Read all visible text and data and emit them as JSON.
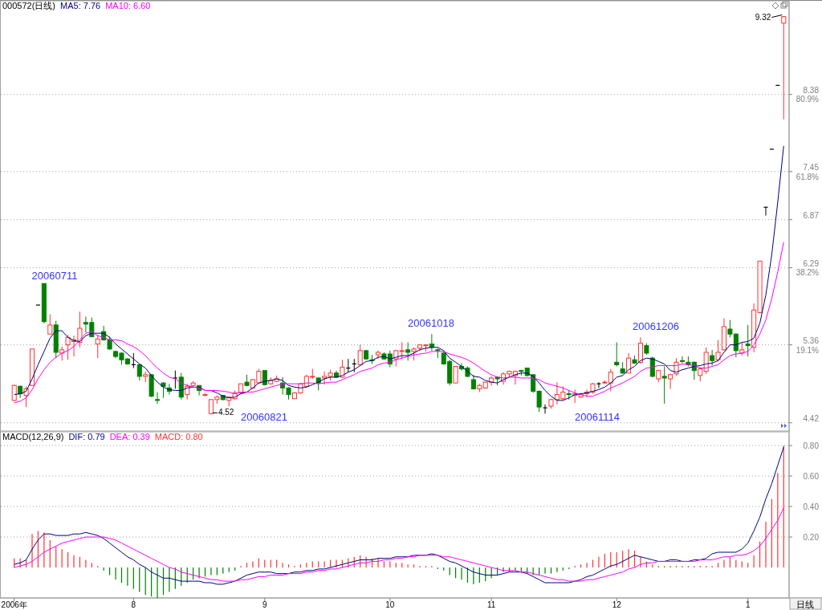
{
  "chart_data": [
    {
      "type": "candlestick",
      "title": "000572(日线)",
      "legend": "top left",
      "grid": "y",
      "tick_labels": "y",
      "categories": [
        null,
        null,
        null,
        null,
        null,
        null,
        null,
        null,
        null,
        null,
        null,
        null,
        null,
        null,
        null,
        null,
        null,
        null,
        null,
        null,
        null,
        null,
        null,
        null,
        null,
        null,
        null,
        null,
        null,
        null,
        null,
        null,
        null,
        null,
        null,
        null,
        null,
        null,
        null,
        null,
        null,
        null,
        null,
        null,
        null,
        null,
        null,
        null,
        null,
        null,
        null,
        null,
        null,
        null,
        null,
        null,
        null,
        null,
        null,
        null,
        null,
        null,
        null,
        null,
        null,
        null,
        null,
        null,
        null,
        null,
        null,
        null,
        null,
        null,
        null,
        null,
        null,
        null,
        null,
        null,
        null,
        null,
        null,
        null,
        null,
        null,
        null,
        null,
        null,
        null,
        null,
        null,
        null,
        null,
        null,
        null,
        null,
        null,
        null,
        null,
        null,
        null,
        null,
        null,
        null,
        null,
        null,
        null,
        null,
        null,
        null,
        null,
        null,
        null,
        null,
        null,
        null,
        null,
        null,
        null,
        null,
        null,
        null,
        null,
        null,
        null,
        null,
        null,
        null,
        null
      ],
      "ohlc": [
        [
          4.69,
          4.88,
          4.68,
          4.87
        ],
        [
          4.86,
          4.87,
          4.72,
          4.77
        ],
        [
          4.75,
          4.86,
          4.61,
          4.83
        ],
        [
          4.87,
          5.31,
          4.87,
          5.31
        ],
        [
          5.84,
          5.84,
          5.84,
          5.84
        ],
        [
          6.1,
          6.1,
          5.62,
          5.64
        ],
        [
          5.49,
          5.73,
          5.49,
          5.6
        ],
        [
          5.6,
          5.65,
          5.2,
          5.27
        ],
        [
          5.26,
          5.34,
          5.17,
          5.3
        ],
        [
          5.36,
          5.48,
          5.18,
          5.45
        ],
        [
          5.4,
          5.47,
          5.22,
          5.42
        ],
        [
          5.39,
          5.76,
          5.33,
          5.56
        ],
        [
          5.63,
          5.7,
          5.51,
          5.61
        ],
        [
          5.63,
          5.69,
          5.45,
          5.46
        ],
        [
          5.37,
          5.48,
          5.2,
          5.43
        ],
        [
          5.52,
          5.59,
          5.41,
          5.42
        ],
        [
          5.42,
          5.46,
          5.3,
          5.31
        ],
        [
          5.28,
          5.29,
          5.2,
          5.22
        ],
        [
          5.26,
          5.27,
          5.12,
          5.18
        ],
        [
          5.19,
          5.2,
          5.12,
          5.13
        ],
        [
          5.12,
          5.26,
          5.08,
          5.12
        ],
        [
          5.12,
          5.13,
          4.93,
          4.98
        ],
        [
          4.98,
          5.04,
          4.91,
          5.0
        ],
        [
          5.0,
          5.0,
          4.73,
          4.74
        ],
        [
          4.7,
          4.79,
          4.65,
          4.69
        ],
        [
          4.9,
          4.91,
          4.72,
          4.86
        ],
        [
          4.84,
          4.89,
          4.76,
          4.8
        ],
        [
          4.96,
          5.05,
          4.83,
          4.96
        ],
        [
          4.97,
          5.02,
          4.7,
          4.73
        ],
        [
          4.76,
          4.89,
          4.7,
          4.86
        ],
        [
          4.87,
          4.92,
          4.84,
          4.9
        ],
        [
          4.87,
          4.87,
          4.75,
          4.81
        ],
        [
          4.75,
          4.78,
          4.74,
          4.76
        ],
        [
          4.53,
          4.7,
          4.52,
          4.7
        ],
        [
          4.7,
          4.75,
          4.65,
          4.73
        ],
        [
          4.75,
          4.75,
          4.69,
          4.7
        ],
        [
          4.69,
          4.74,
          4.62,
          4.73
        ],
        [
          4.71,
          4.81,
          4.7,
          4.78
        ],
        [
          4.78,
          4.89,
          4.77,
          4.89
        ],
        [
          4.91,
          5.0,
          4.86,
          4.87
        ],
        [
          4.84,
          4.95,
          4.83,
          4.94
        ],
        [
          4.9,
          5.07,
          4.89,
          5.04
        ],
        [
          5.05,
          5.05,
          4.87,
          4.88
        ],
        [
          4.89,
          4.97,
          4.88,
          4.93
        ],
        [
          4.92,
          4.99,
          4.91,
          4.95
        ],
        [
          4.9,
          4.97,
          4.76,
          4.84
        ],
        [
          4.84,
          4.85,
          4.7,
          4.76
        ],
        [
          4.71,
          4.79,
          4.71,
          4.78
        ],
        [
          4.78,
          4.9,
          4.77,
          4.89
        ],
        [
          4.86,
          5.0,
          4.85,
          4.98
        ],
        [
          4.97,
          5.07,
          4.95,
          4.98
        ],
        [
          4.96,
          4.97,
          4.81,
          4.9
        ],
        [
          4.96,
          5.04,
          4.88,
          4.98
        ],
        [
          4.98,
          5.06,
          4.93,
          5.02
        ],
        [
          5.02,
          5.05,
          4.96,
          4.97
        ],
        [
          4.97,
          5.18,
          4.96,
          5.09
        ],
        [
          5.08,
          5.19,
          5.03,
          5.08
        ],
        [
          5.13,
          5.19,
          5.03,
          5.13
        ],
        [
          5.12,
          5.36,
          5.11,
          5.29
        ],
        [
          5.29,
          5.3,
          5.18,
          5.19
        ],
        [
          5.18,
          5.24,
          5.13,
          5.17
        ],
        [
          5.24,
          5.29,
          5.19,
          5.27
        ],
        [
          5.25,
          5.27,
          5.18,
          5.19
        ],
        [
          5.25,
          5.29,
          5.09,
          5.13
        ],
        [
          5.19,
          5.3,
          5.1,
          5.29
        ],
        [
          5.28,
          5.39,
          5.19,
          5.29
        ],
        [
          5.3,
          5.39,
          5.17,
          5.27
        ],
        [
          5.28,
          5.33,
          5.17,
          5.31
        ],
        [
          5.32,
          5.36,
          5.29,
          5.36
        ],
        [
          5.35,
          5.36,
          5.28,
          5.36
        ],
        [
          5.37,
          5.49,
          5.29,
          5.33
        ],
        [
          5.3,
          5.32,
          5.2,
          5.29
        ],
        [
          5.26,
          5.28,
          5.12,
          5.13
        ],
        [
          5.16,
          5.18,
          4.87,
          4.9
        ],
        [
          4.9,
          5.1,
          4.9,
          5.1
        ],
        [
          5.1,
          5.14,
          5.05,
          5.07
        ],
        [
          5.08,
          5.1,
          4.97,
          4.98
        ],
        [
          4.94,
          5.0,
          4.82,
          4.83
        ],
        [
          4.83,
          4.89,
          4.79,
          4.87
        ],
        [
          4.84,
          4.91,
          4.83,
          4.91
        ],
        [
          4.91,
          4.98,
          4.87,
          4.96
        ],
        [
          4.97,
          4.98,
          4.87,
          4.95
        ],
        [
          4.92,
          5.03,
          4.88,
          5.01
        ],
        [
          5.01,
          5.05,
          4.97,
          5.04
        ],
        [
          4.99,
          5.05,
          4.88,
          5.04
        ],
        [
          5.05,
          5.06,
          4.99,
          5.04
        ],
        [
          5.08,
          5.08,
          4.98,
          4.99
        ],
        [
          5.0,
          5.0,
          4.78,
          4.8
        ],
        [
          4.8,
          4.81,
          4.55,
          4.61
        ],
        [
          4.6,
          4.64,
          4.53,
          4.6
        ],
        [
          4.62,
          4.71,
          4.59,
          4.7
        ],
        [
          4.7,
          4.91,
          4.64,
          4.76
        ],
        [
          4.71,
          4.86,
          4.69,
          4.79
        ],
        [
          4.77,
          4.81,
          4.7,
          4.76
        ],
        [
          4.75,
          4.82,
          4.66,
          4.77
        ],
        [
          4.73,
          4.78,
          4.72,
          4.77
        ],
        [
          4.77,
          4.82,
          4.73,
          4.79
        ],
        [
          4.79,
          4.9,
          4.77,
          4.89
        ],
        [
          4.89,
          4.91,
          4.84,
          4.89
        ],
        [
          4.9,
          4.93,
          4.89,
          4.91
        ],
        [
          4.9,
          5.07,
          4.8,
          5.03
        ],
        [
          5.15,
          5.39,
          5.1,
          5.12
        ],
        [
          5.07,
          5.15,
          5.01,
          5.02
        ],
        [
          5.02,
          5.26,
          5.02,
          5.2
        ],
        [
          5.18,
          5.23,
          5.13,
          5.14
        ],
        [
          5.15,
          5.45,
          5.13,
          5.38
        ],
        [
          5.35,
          5.38,
          5.24,
          5.26
        ],
        [
          5.2,
          5.22,
          4.97,
          4.98
        ],
        [
          4.95,
          5.06,
          4.91,
          5.05
        ],
        [
          4.98,
          5.1,
          4.65,
          4.96
        ],
        [
          4.95,
          5.01,
          4.83,
          5.0
        ],
        [
          5.01,
          5.2,
          4.99,
          5.15
        ],
        [
          5.17,
          5.22,
          5.14,
          5.16
        ],
        [
          5.15,
          5.22,
          5.1,
          5.12
        ],
        [
          5.15,
          5.16,
          4.94,
          5.05
        ],
        [
          4.99,
          5.09,
          4.92,
          5.07
        ],
        [
          5.04,
          5.33,
          5.01,
          5.27
        ],
        [
          5.23,
          5.3,
          5.11,
          5.17
        ],
        [
          5.18,
          5.42,
          5.16,
          5.27
        ],
        [
          5.3,
          5.68,
          5.29,
          5.58
        ],
        [
          5.55,
          5.66,
          5.45,
          5.49
        ],
        [
          5.49,
          5.5,
          5.21,
          5.29
        ],
        [
          5.26,
          5.39,
          5.23,
          5.3
        ],
        [
          5.37,
          5.6,
          5.22,
          5.35
        ],
        [
          5.33,
          5.86,
          5.27,
          5.78
        ],
        [
          5.75,
          6.37,
          5.74,
          6.37
        ],
        [
          7.02,
          7.02,
          6.92,
          7.02
        ],
        [
          7.72,
          7.72,
          7.72,
          7.72
        ],
        [
          8.49,
          8.49,
          8.49,
          8.49
        ],
        [
          9.24,
          9.32,
          8.08,
          9.32
        ]
      ],
      "colors": [
        "#ff3333",
        "#008000",
        "#ff3333",
        "#ff3333",
        "#000000",
        "#008000",
        "#ff3333",
        "#008000",
        "#ff3333",
        "#ff3333",
        "#ff3333",
        "#ff3333",
        "#008000",
        "#008000",
        "#ff3333",
        "#008000",
        "#008000",
        "#008000",
        "#008000",
        "#008000",
        "#000000",
        "#008000",
        "#ff3333",
        "#008000",
        "#008000",
        "#008000",
        "#008000",
        "#000000",
        "#008000",
        "#ff3333",
        "#ff3333",
        "#008000",
        "#ff3333",
        "#ff3333",
        "#ff3333",
        "#008000",
        "#ff3333",
        "#ff3333",
        "#ff3333",
        "#008000",
        "#ff3333",
        "#ff3333",
        "#008000",
        "#ff3333",
        "#ff3333",
        "#008000",
        "#008000",
        "#ff3333",
        "#ff3333",
        "#ff3333",
        "#ff3333",
        "#008000",
        "#ff3333",
        "#ff3333",
        "#008000",
        "#ff3333",
        "#000000",
        "#000000",
        "#ff3333",
        "#008000",
        "#008000",
        "#ff3333",
        "#008000",
        "#008000",
        "#ff3333",
        "#ff3333",
        "#008000",
        "#ff3333",
        "#ff3333",
        "#ff3333",
        "#008000",
        "#008000",
        "#008000",
        "#008000",
        "#ff3333",
        "#008000",
        "#008000",
        "#008000",
        "#ff3333",
        "#ff3333",
        "#ff3333",
        "#008000",
        "#ff3333",
        "#ff3333",
        "#ff3333",
        "#008000",
        "#008000",
        "#008000",
        "#008000",
        "#000000",
        "#ff3333",
        "#ff3333",
        "#ff3333",
        "#008000",
        "#ff3333",
        "#ff3333",
        "#ff3333",
        "#ff3333",
        "#000000",
        "#ff3333",
        "#ff3333",
        "#008000",
        "#008000",
        "#ff3333",
        "#008000",
        "#ff3333",
        "#008000",
        "#008000",
        "#ff3333",
        "#008000",
        "#ff3333",
        "#ff3333",
        "#008000",
        "#008000",
        "#008000",
        "#ff3333",
        "#ff3333",
        "#008000",
        "#ff3333",
        "#ff3333",
        "#008000",
        "#008000",
        "#ff3333",
        "#008000",
        "#ff3333",
        "#ff3333",
        "#000000",
        "#000000",
        "#000000",
        "#ff3333"
      ],
      "value_labels": [
        null,
        null,
        null,
        null,
        null,
        null,
        null,
        null,
        null,
        null,
        null,
        null,
        null,
        null,
        null,
        null,
        null,
        null,
        null,
        null,
        null,
        null,
        null,
        null,
        null,
        null,
        null,
        null,
        null,
        null,
        null,
        null,
        null,
        "4.52",
        null,
        null,
        null,
        null,
        null,
        null,
        null,
        null,
        null,
        null,
        null,
        null,
        null,
        null,
        null,
        null,
        null,
        null,
        null,
        null,
        null,
        null,
        null,
        null,
        null,
        null,
        null,
        null,
        null,
        null,
        null,
        null,
        null,
        null,
        null,
        null,
        null,
        null,
        null,
        null,
        null,
        null,
        null,
        null,
        null,
        null,
        null,
        null,
        null,
        null,
        null,
        null,
        null,
        null,
        null,
        null,
        null,
        null,
        null,
        null,
        null,
        null,
        null,
        null,
        null,
        null,
        null,
        null,
        null,
        null,
        null,
        null,
        null,
        null,
        null,
        null,
        null,
        null,
        null,
        null,
        null,
        null,
        null,
        null,
        null,
        null,
        null,
        null,
        null,
        null,
        null,
        null,
        null,
        null,
        null,
        "9.32"
      ],
      "series": [
        {
          "type": "line",
          "name": "MA5: 7.76",
          "color": "#000080",
          "values": [
            4.76,
            4.77,
            4.8,
            4.95,
            5.12,
            5.28,
            5.44,
            5.53,
            5.53,
            5.45,
            5.41,
            5.4,
            5.47,
            5.5,
            5.5,
            5.5,
            5.45,
            5.37,
            5.31,
            5.25,
            5.19,
            5.13,
            5.08,
            4.99,
            4.91,
            4.85,
            4.82,
            4.81,
            4.81,
            4.84,
            4.85,
            4.85,
            4.81,
            4.81,
            4.78,
            4.74,
            4.72,
            4.73,
            4.77,
            4.79,
            4.84,
            4.9,
            4.92,
            4.93,
            4.95,
            4.93,
            4.87,
            4.85,
            4.84,
            4.85,
            4.88,
            4.91,
            4.95,
            4.97,
            4.97,
            4.99,
            5.03,
            5.06,
            5.11,
            5.16,
            5.17,
            5.21,
            5.22,
            5.19,
            5.21,
            5.23,
            5.23,
            5.26,
            5.3,
            5.32,
            5.33,
            5.33,
            5.29,
            5.2,
            5.15,
            5.1,
            5.04,
            4.98,
            4.97,
            4.93,
            4.91,
            4.9,
            4.94,
            4.97,
            5.0,
            5.02,
            5.02,
            4.98,
            4.9,
            4.81,
            4.74,
            4.69,
            4.69,
            4.72,
            4.76,
            4.77,
            4.78,
            4.8,
            4.82,
            4.85,
            4.9,
            4.97,
            4.99,
            5.06,
            5.1,
            5.17,
            5.2,
            5.19,
            5.16,
            5.13,
            5.05,
            5.03,
            5.06,
            5.08,
            5.1,
            5.11,
            5.13,
            5.14,
            5.17,
            5.27,
            5.36,
            5.36,
            5.39,
            5.4,
            5.44,
            5.62,
            5.96,
            6.45,
            7.08,
            7.76
          ]
        },
        {
          "type": "line",
          "name": "MA10: 6.60",
          "color": "#ff00ff",
          "values": [
            4.66,
            4.68,
            4.72,
            4.82,
            4.95,
            5.06,
            5.15,
            5.21,
            5.26,
            5.29,
            5.34,
            5.42,
            5.5,
            5.52,
            5.47,
            5.45,
            5.42,
            5.42,
            5.41,
            5.37,
            5.34,
            5.29,
            5.23,
            5.15,
            5.08,
            5.02,
            4.97,
            4.95,
            4.9,
            4.87,
            4.85,
            4.84,
            4.81,
            4.81,
            4.81,
            4.8,
            4.79,
            4.77,
            4.79,
            4.79,
            4.79,
            4.81,
            4.83,
            4.85,
            4.87,
            4.89,
            4.89,
            4.89,
            4.89,
            4.9,
            4.9,
            4.89,
            4.9,
            4.91,
            4.91,
            4.94,
            4.97,
            5.0,
            5.04,
            5.06,
            5.08,
            5.12,
            5.14,
            5.15,
            5.18,
            5.2,
            5.22,
            5.24,
            5.25,
            5.26,
            5.28,
            5.28,
            5.28,
            5.25,
            5.23,
            5.21,
            5.18,
            5.14,
            5.09,
            5.04,
            5.0,
            4.97,
            4.96,
            4.97,
            4.97,
            4.96,
            4.96,
            4.96,
            4.94,
            4.9,
            4.88,
            4.86,
            4.84,
            4.81,
            4.78,
            4.76,
            4.74,
            4.74,
            4.77,
            4.8,
            4.84,
            4.87,
            4.9,
            4.94,
            4.98,
            5.04,
            5.08,
            5.09,
            5.11,
            5.11,
            5.11,
            5.11,
            5.13,
            5.12,
            5.11,
            5.08,
            5.08,
            5.1,
            5.12,
            5.18,
            5.23,
            5.25,
            5.26,
            5.28,
            5.36,
            5.49,
            5.66,
            5.92,
            6.24,
            6.6
          ]
        }
      ],
      "ylim": [
        4.34,
        9.51
      ],
      "yticks": [
        {
          "value": 4.42,
          "label": "4.42"
        },
        {
          "value": 5.36,
          "label": "5.36"
        },
        {
          "value": 6.29,
          "label": "6.29"
        },
        {
          "value": 6.87,
          "label": "6.87"
        },
        {
          "value": 7.45,
          "label": "7.45"
        },
        {
          "value": 8.38,
          "label": "8.38"
        }
      ],
      "y2lim": [
        -1.6,
        103.9
      ],
      "y2ticks": [
        {
          "value": 19.1,
          "label": "19.1%"
        },
        {
          "value": 38.2,
          "label": "38.2%"
        },
        {
          "value": 61.8,
          "label": "61.8%"
        },
        {
          "value": 80.9,
          "label": "80.9%"
        }
      ],
      "annotations": [
        "20060711",
        "20060821",
        "20061018",
        "20061114",
        "20061206"
      ]
    },
    {
      "type": "bar",
      "title": "MACD(12,26,9)",
      "legend": "top left",
      "grid": "y",
      "categories": [
        "2006年",
        null,
        null,
        null,
        null,
        null,
        null,
        null,
        null,
        null,
        null,
        null,
        null,
        null,
        null,
        null,
        null,
        null,
        null,
        null,
        "8",
        null,
        null,
        null,
        null,
        null,
        null,
        null,
        null,
        null,
        null,
        null,
        null,
        null,
        null,
        null,
        null,
        null,
        null,
        null,
        null,
        null,
        "9",
        null,
        null,
        null,
        null,
        null,
        null,
        null,
        null,
        null,
        null,
        null,
        null,
        null,
        null,
        null,
        null,
        null,
        null,
        null,
        null,
        "10",
        null,
        null,
        null,
        null,
        null,
        null,
        null,
        null,
        null,
        null,
        null,
        null,
        null,
        null,
        null,
        null,
        "11",
        null,
        null,
        null,
        null,
        null,
        null,
        null,
        null,
        null,
        null,
        null,
        null,
        null,
        null,
        null,
        null,
        null,
        null,
        null,
        null,
        "12",
        null,
        null,
        null,
        null,
        null,
        null,
        null,
        null,
        null,
        null,
        null,
        null,
        null,
        null,
        null,
        null,
        null,
        null,
        null,
        null,
        null,
        "1",
        null,
        null,
        null,
        null,
        null,
        null
      ],
      "series": [
        {
          "type": "line",
          "name": "DIF: 0.79",
          "color": "#000080",
          "values": [
            0.02,
            0.03,
            0.05,
            0.12,
            0.18,
            0.22,
            0.22,
            0.21,
            0.21,
            0.21,
            0.22,
            0.22,
            0.23,
            0.22,
            0.21,
            0.19,
            0.16,
            0.13,
            0.1,
            0.07,
            0.05,
            0.02,
            0.0,
            -0.03,
            -0.05,
            -0.07,
            -0.07,
            -0.08,
            -0.09,
            -0.09,
            -0.09,
            -0.09,
            -0.1,
            -0.1,
            -0.11,
            -0.11,
            -0.1,
            -0.09,
            -0.07,
            -0.05,
            -0.04,
            -0.03,
            -0.03,
            -0.03,
            -0.04,
            -0.04,
            -0.04,
            -0.03,
            -0.03,
            -0.02,
            -0.02,
            -0.01,
            -0.01,
            0.0,
            0.01,
            0.02,
            0.03,
            0.04,
            0.05,
            0.05,
            0.05,
            0.06,
            0.06,
            0.06,
            0.07,
            0.07,
            0.07,
            0.08,
            0.08,
            0.08,
            0.09,
            0.08,
            0.06,
            0.04,
            0.03,
            0.01,
            -0.01,
            -0.03,
            -0.04,
            -0.05,
            -0.05,
            -0.05,
            -0.04,
            -0.03,
            -0.03,
            -0.03,
            -0.04,
            -0.06,
            -0.08,
            -0.1,
            -0.1,
            -0.1,
            -0.1,
            -0.1,
            -0.09,
            -0.08,
            -0.06,
            -0.05,
            -0.03,
            -0.01,
            0.01,
            0.02,
            0.04,
            0.06,
            0.08,
            0.07,
            0.06,
            0.05,
            0.04,
            0.04,
            0.05,
            0.05,
            0.04,
            0.04,
            0.05,
            0.05,
            0.06,
            0.09,
            0.1,
            0.1,
            0.1,
            0.1,
            0.12,
            0.16,
            0.24,
            0.33,
            0.45,
            0.55,
            0.67,
            0.79
          ]
        },
        {
          "type": "line",
          "name": "DEA: 0.39",
          "color": "#ff00ff",
          "values": [
            0.0,
            0.01,
            0.02,
            0.04,
            0.07,
            0.1,
            0.12,
            0.14,
            0.16,
            0.17,
            0.18,
            0.19,
            0.2,
            0.2,
            0.2,
            0.2,
            0.19,
            0.18,
            0.16,
            0.14,
            0.12,
            0.1,
            0.08,
            0.06,
            0.04,
            0.02,
            0.0,
            -0.01,
            -0.03,
            -0.04,
            -0.05,
            -0.06,
            -0.07,
            -0.08,
            -0.08,
            -0.09,
            -0.09,
            -0.09,
            -0.08,
            -0.08,
            -0.07,
            -0.06,
            -0.06,
            -0.05,
            -0.05,
            -0.05,
            -0.04,
            -0.04,
            -0.04,
            -0.03,
            -0.03,
            -0.02,
            -0.02,
            -0.01,
            -0.01,
            0.0,
            0.01,
            0.02,
            0.03,
            0.03,
            0.04,
            0.04,
            0.05,
            0.05,
            0.06,
            0.06,
            0.07,
            0.07,
            0.08,
            0.08,
            0.08,
            0.08,
            0.07,
            0.07,
            0.06,
            0.05,
            0.04,
            0.03,
            0.02,
            0.01,
            0.0,
            -0.01,
            -0.02,
            -0.02,
            -0.02,
            -0.03,
            -0.03,
            -0.04,
            -0.05,
            -0.06,
            -0.07,
            -0.08,
            -0.08,
            -0.09,
            -0.09,
            -0.09,
            -0.08,
            -0.08,
            -0.07,
            -0.06,
            -0.05,
            -0.04,
            -0.03,
            -0.01,
            0.0,
            0.02,
            0.03,
            0.03,
            0.04,
            0.04,
            0.04,
            0.04,
            0.04,
            0.04,
            0.04,
            0.05,
            0.05,
            0.05,
            0.06,
            0.07,
            0.07,
            0.08,
            0.08,
            0.09,
            0.11,
            0.14,
            0.19,
            0.25,
            0.31,
            0.39
          ]
        },
        {
          "type": "bar",
          "name": "MACD: 0.80",
          "color": "#ff3333",
          "values": [
            0.06,
            0.06,
            0.05,
            0.22,
            0.24,
            0.23,
            0.18,
            0.14,
            0.12,
            0.1,
            0.08,
            0.07,
            0.05,
            0.03,
            0.01,
            -0.02,
            -0.05,
            -0.08,
            -0.1,
            -0.12,
            -0.14,
            -0.16,
            -0.18,
            -0.19,
            -0.2,
            -0.18,
            -0.16,
            -0.14,
            -0.12,
            -0.1,
            -0.08,
            -0.07,
            -0.06,
            -0.05,
            -0.05,
            -0.04,
            -0.03,
            -0.02,
            0.01,
            0.03,
            0.04,
            0.06,
            0.05,
            0.05,
            0.05,
            0.03,
            0.02,
            0.01,
            0.02,
            0.03,
            0.04,
            0.04,
            0.04,
            0.05,
            0.05,
            0.05,
            0.06,
            0.07,
            0.08,
            0.07,
            0.06,
            0.06,
            0.04,
            0.04,
            0.03,
            0.03,
            0.02,
            0.02,
            0.01,
            0.01,
            0.01,
            -0.01,
            -0.02,
            -0.05,
            -0.07,
            -0.08,
            -0.1,
            -0.11,
            -0.1,
            -0.09,
            -0.07,
            -0.05,
            -0.03,
            -0.03,
            -0.02,
            -0.03,
            -0.04,
            -0.05,
            -0.05,
            -0.04,
            -0.04,
            -0.03,
            -0.02,
            -0.01,
            0.01,
            0.02,
            0.03,
            0.05,
            0.07,
            0.09,
            0.1,
            0.1,
            0.11,
            0.12,
            0.11,
            0.07,
            0.04,
            0.02,
            0.01,
            0.01,
            0.01,
            0.01,
            0.01,
            0.01,
            0.01,
            0.01,
            0.01,
            0.01,
            0.03,
            0.05,
            0.07,
            0.05,
            0.04,
            0.03,
            0.08,
            0.17,
            0.3,
            0.45,
            0.62,
            0.8
          ],
          "colors": [
            "#ff3333",
            "#ff3333",
            "#ff3333",
            "#ff3333",
            "#ff3333",
            "#ff3333",
            "#ff3333",
            "#ff3333",
            "#ff3333",
            "#ff3333",
            "#ff3333",
            "#ff3333",
            "#ff3333",
            "#ff3333",
            "#ff3333",
            "#008000",
            "#008000",
            "#008000",
            "#008000",
            "#008000",
            "#008000",
            "#008000",
            "#008000",
            "#008000",
            "#008000",
            "#008000",
            "#008000",
            "#008000",
            "#008000",
            "#008000",
            "#008000",
            "#008000",
            "#008000",
            "#008000",
            "#008000",
            "#008000",
            "#008000",
            "#008000",
            "#ff3333",
            "#ff3333",
            "#ff3333",
            "#ff3333",
            "#ff3333",
            "#ff3333",
            "#ff3333",
            "#ff3333",
            "#ff3333",
            "#ff3333",
            "#ff3333",
            "#ff3333",
            "#ff3333",
            "#ff3333",
            "#ff3333",
            "#ff3333",
            "#ff3333",
            "#ff3333",
            "#ff3333",
            "#ff3333",
            "#ff3333",
            "#ff3333",
            "#ff3333",
            "#ff3333",
            "#ff3333",
            "#ff3333",
            "#ff3333",
            "#ff3333",
            "#ff3333",
            "#ff3333",
            "#ff3333",
            "#ff3333",
            "#ff3333",
            "#008000",
            "#008000",
            "#008000",
            "#008000",
            "#008000",
            "#008000",
            "#008000",
            "#008000",
            "#008000",
            "#008000",
            "#008000",
            "#008000",
            "#008000",
            "#008000",
            "#008000",
            "#008000",
            "#008000",
            "#008000",
            "#008000",
            "#008000",
            "#008000",
            "#008000",
            "#008000",
            "#ff3333",
            "#ff3333",
            "#ff3333",
            "#ff3333",
            "#ff3333",
            "#ff3333",
            "#ff3333",
            "#ff3333",
            "#ff3333",
            "#ff3333",
            "#ff3333",
            "#ff3333",
            "#ff3333",
            "#ff3333",
            "#ff3333",
            "#ff3333",
            "#ff3333",
            "#ff3333",
            "#ff3333",
            "#ff3333",
            "#ff3333",
            "#ff3333",
            "#ff3333",
            "#ff3333",
            "#ff3333",
            "#ff3333",
            "#ff3333",
            "#ff3333",
            "#ff3333",
            "#ff3333",
            "#ff3333",
            "#ff3333",
            "#ff3333",
            "#ff3333",
            "#ff3333",
            "#ff3333"
          ]
        }
      ],
      "ylim": [
        -0.2,
        0.89
      ],
      "yticks": [
        {
          "value": 0.2,
          "label": "0.20"
        },
        {
          "value": 0.4,
          "label": "0.40"
        },
        {
          "value": 0.6,
          "label": "0.60"
        },
        {
          "value": 0.8,
          "label": "0.80"
        }
      ],
      "annotations": [
        "日线"
      ]
    }
  ]
}
